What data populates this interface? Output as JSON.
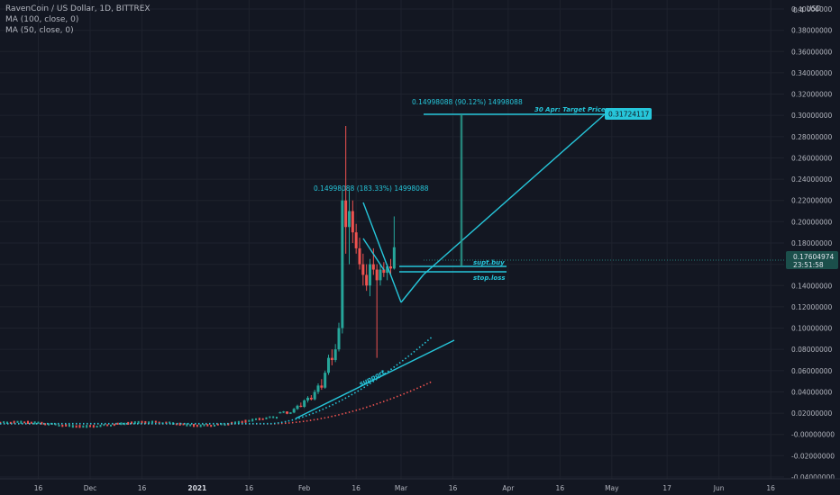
{
  "header": {
    "title": "RavenCoin / US Dollar, 1D, BITTREX",
    "indicator_ma100": "MA (100, close, 0)",
    "indicator_ma50": "MA (50, close, 0)"
  },
  "currency": "USD",
  "last_price": "0.17604974",
  "countdown": "23:51:58",
  "colors": {
    "background": "#131722",
    "up": "#26a69a",
    "down": "#ef5350",
    "drawing": "#26c6da",
    "ma50": "#26c6da",
    "ma100": "#ef5350"
  },
  "annotations": {
    "measure1": "0.14998088 (183.33%) 14998088",
    "measure2": "0.14998088 (90.12%) 14998088",
    "target_text": "30 Apr: Target Price",
    "target_value": "0.31724117",
    "supt_buy": "supt.buy",
    "stop_loss": "stop.loss",
    "support": "support"
  },
  "chart_data": {
    "type": "candlestick",
    "title": "RavenCoin / US Dollar, 1D, BITTREX",
    "y_axis_labels": [
      "0.4",
      "0.40000000",
      "0.38000000",
      "0.36000000",
      "0.34000000",
      "0.32000000",
      "0.30000000",
      "0.28000000",
      "0.26000000",
      "0.24000000",
      "0.22000000",
      "0.20000000",
      "0.18000000",
      "0.16000000",
      "0.14000000",
      "0.12000000",
      "0.10000000",
      "0.08000000",
      "0.06000000",
      "0.04000000",
      "0.02000000",
      "-0.00000000",
      "-0.02000000",
      "-0.04000000"
    ],
    "y_ticks": [
      0.4,
      0.38,
      0.36,
      0.34,
      0.32,
      0.3,
      0.28,
      0.26,
      0.24,
      0.22,
      0.2,
      0.18,
      0.16,
      0.14,
      0.12,
      0.1,
      0.08,
      0.06,
      0.04,
      0.02,
      0,
      -0.02,
      -0.04
    ],
    "ylim": [
      -0.045,
      0.41
    ],
    "x_axis_labels": [
      "16",
      "Dec",
      "16",
      "2021",
      "16",
      "Feb",
      "16",
      "Mar",
      "16",
      "Apr",
      "16",
      "May",
      "17",
      "Jun",
      "16"
    ],
    "x_ticks": [
      "2020-11-16",
      "2020-12-01",
      "2020-12-16",
      "2021-01-01",
      "2021-01-16",
      "2021-02-01",
      "2021-02-16",
      "2021-03-01",
      "2021-03-16",
      "2021-04-01",
      "2021-04-16",
      "2021-05-01",
      "2021-05-17",
      "2021-06-01",
      "2021-06-16"
    ],
    "xlim": [
      "2020-11-02",
      "2021-06-24"
    ],
    "grid": true,
    "ohlc": [
      [
        "2021-01-25",
        0.0205,
        0.0215,
        0.0196,
        0.0208
      ],
      [
        "2021-01-26",
        0.0208,
        0.022,
        0.0201,
        0.0215
      ],
      [
        "2021-01-27",
        0.0215,
        0.0218,
        0.019,
        0.0195
      ],
      [
        "2021-01-28",
        0.0195,
        0.021,
        0.0192,
        0.0206
      ],
      [
        "2021-01-29",
        0.0206,
        0.025,
        0.02,
        0.024
      ],
      [
        "2021-01-30",
        0.024,
        0.028,
        0.023,
        0.027
      ],
      [
        "2021-01-31",
        0.027,
        0.03,
        0.0255,
        0.026
      ],
      [
        "2021-02-01",
        0.026,
        0.033,
        0.025,
        0.032
      ],
      [
        "2021-02-02",
        0.032,
        0.036,
        0.03,
        0.0345
      ],
      [
        "2021-02-03",
        0.0345,
        0.037,
        0.032,
        0.033
      ],
      [
        "2021-02-04",
        0.033,
        0.042,
        0.032,
        0.04
      ],
      [
        "2021-02-05",
        0.04,
        0.048,
        0.038,
        0.046
      ],
      [
        "2021-02-06",
        0.046,
        0.052,
        0.042,
        0.044
      ],
      [
        "2021-02-07",
        0.044,
        0.06,
        0.043,
        0.058
      ],
      [
        "2021-02-08",
        0.058,
        0.075,
        0.056,
        0.072
      ],
      [
        "2021-02-09",
        0.072,
        0.08,
        0.065,
        0.07
      ],
      [
        "2021-02-10",
        0.07,
        0.085,
        0.068,
        0.08
      ],
      [
        "2021-02-11",
        0.08,
        0.105,
        0.078,
        0.1
      ],
      [
        "2021-02-12",
        0.1,
        0.23,
        0.095,
        0.22
      ],
      [
        "2021-02-13",
        0.22,
        0.29,
        0.17,
        0.195
      ],
      [
        "2021-02-14",
        0.195,
        0.23,
        0.16,
        0.21
      ],
      [
        "2021-02-15",
        0.21,
        0.22,
        0.18,
        0.19
      ],
      [
        "2021-02-16",
        0.19,
        0.198,
        0.17,
        0.175
      ],
      [
        "2021-02-17",
        0.175,
        0.185,
        0.155,
        0.16
      ],
      [
        "2021-02-18",
        0.16,
        0.17,
        0.14,
        0.15
      ],
      [
        "2021-02-19",
        0.15,
        0.16,
        0.135,
        0.14
      ],
      [
        "2021-02-20",
        0.14,
        0.165,
        0.13,
        0.16
      ],
      [
        "2021-02-21",
        0.16,
        0.175,
        0.15,
        0.155
      ],
      [
        "2021-02-22",
        0.155,
        0.16,
        0.072,
        0.145
      ],
      [
        "2021-02-23",
        0.145,
        0.16,
        0.14,
        0.155
      ],
      [
        "2021-02-24",
        0.155,
        0.162,
        0.148,
        0.152
      ],
      [
        "2021-02-25",
        0.152,
        0.16,
        0.145,
        0.158
      ],
      [
        "2021-02-26",
        0.158,
        0.165,
        0.15,
        0.156
      ],
      [
        "2021-02-27",
        0.156,
        0.205,
        0.155,
        0.176
      ]
    ]
  }
}
